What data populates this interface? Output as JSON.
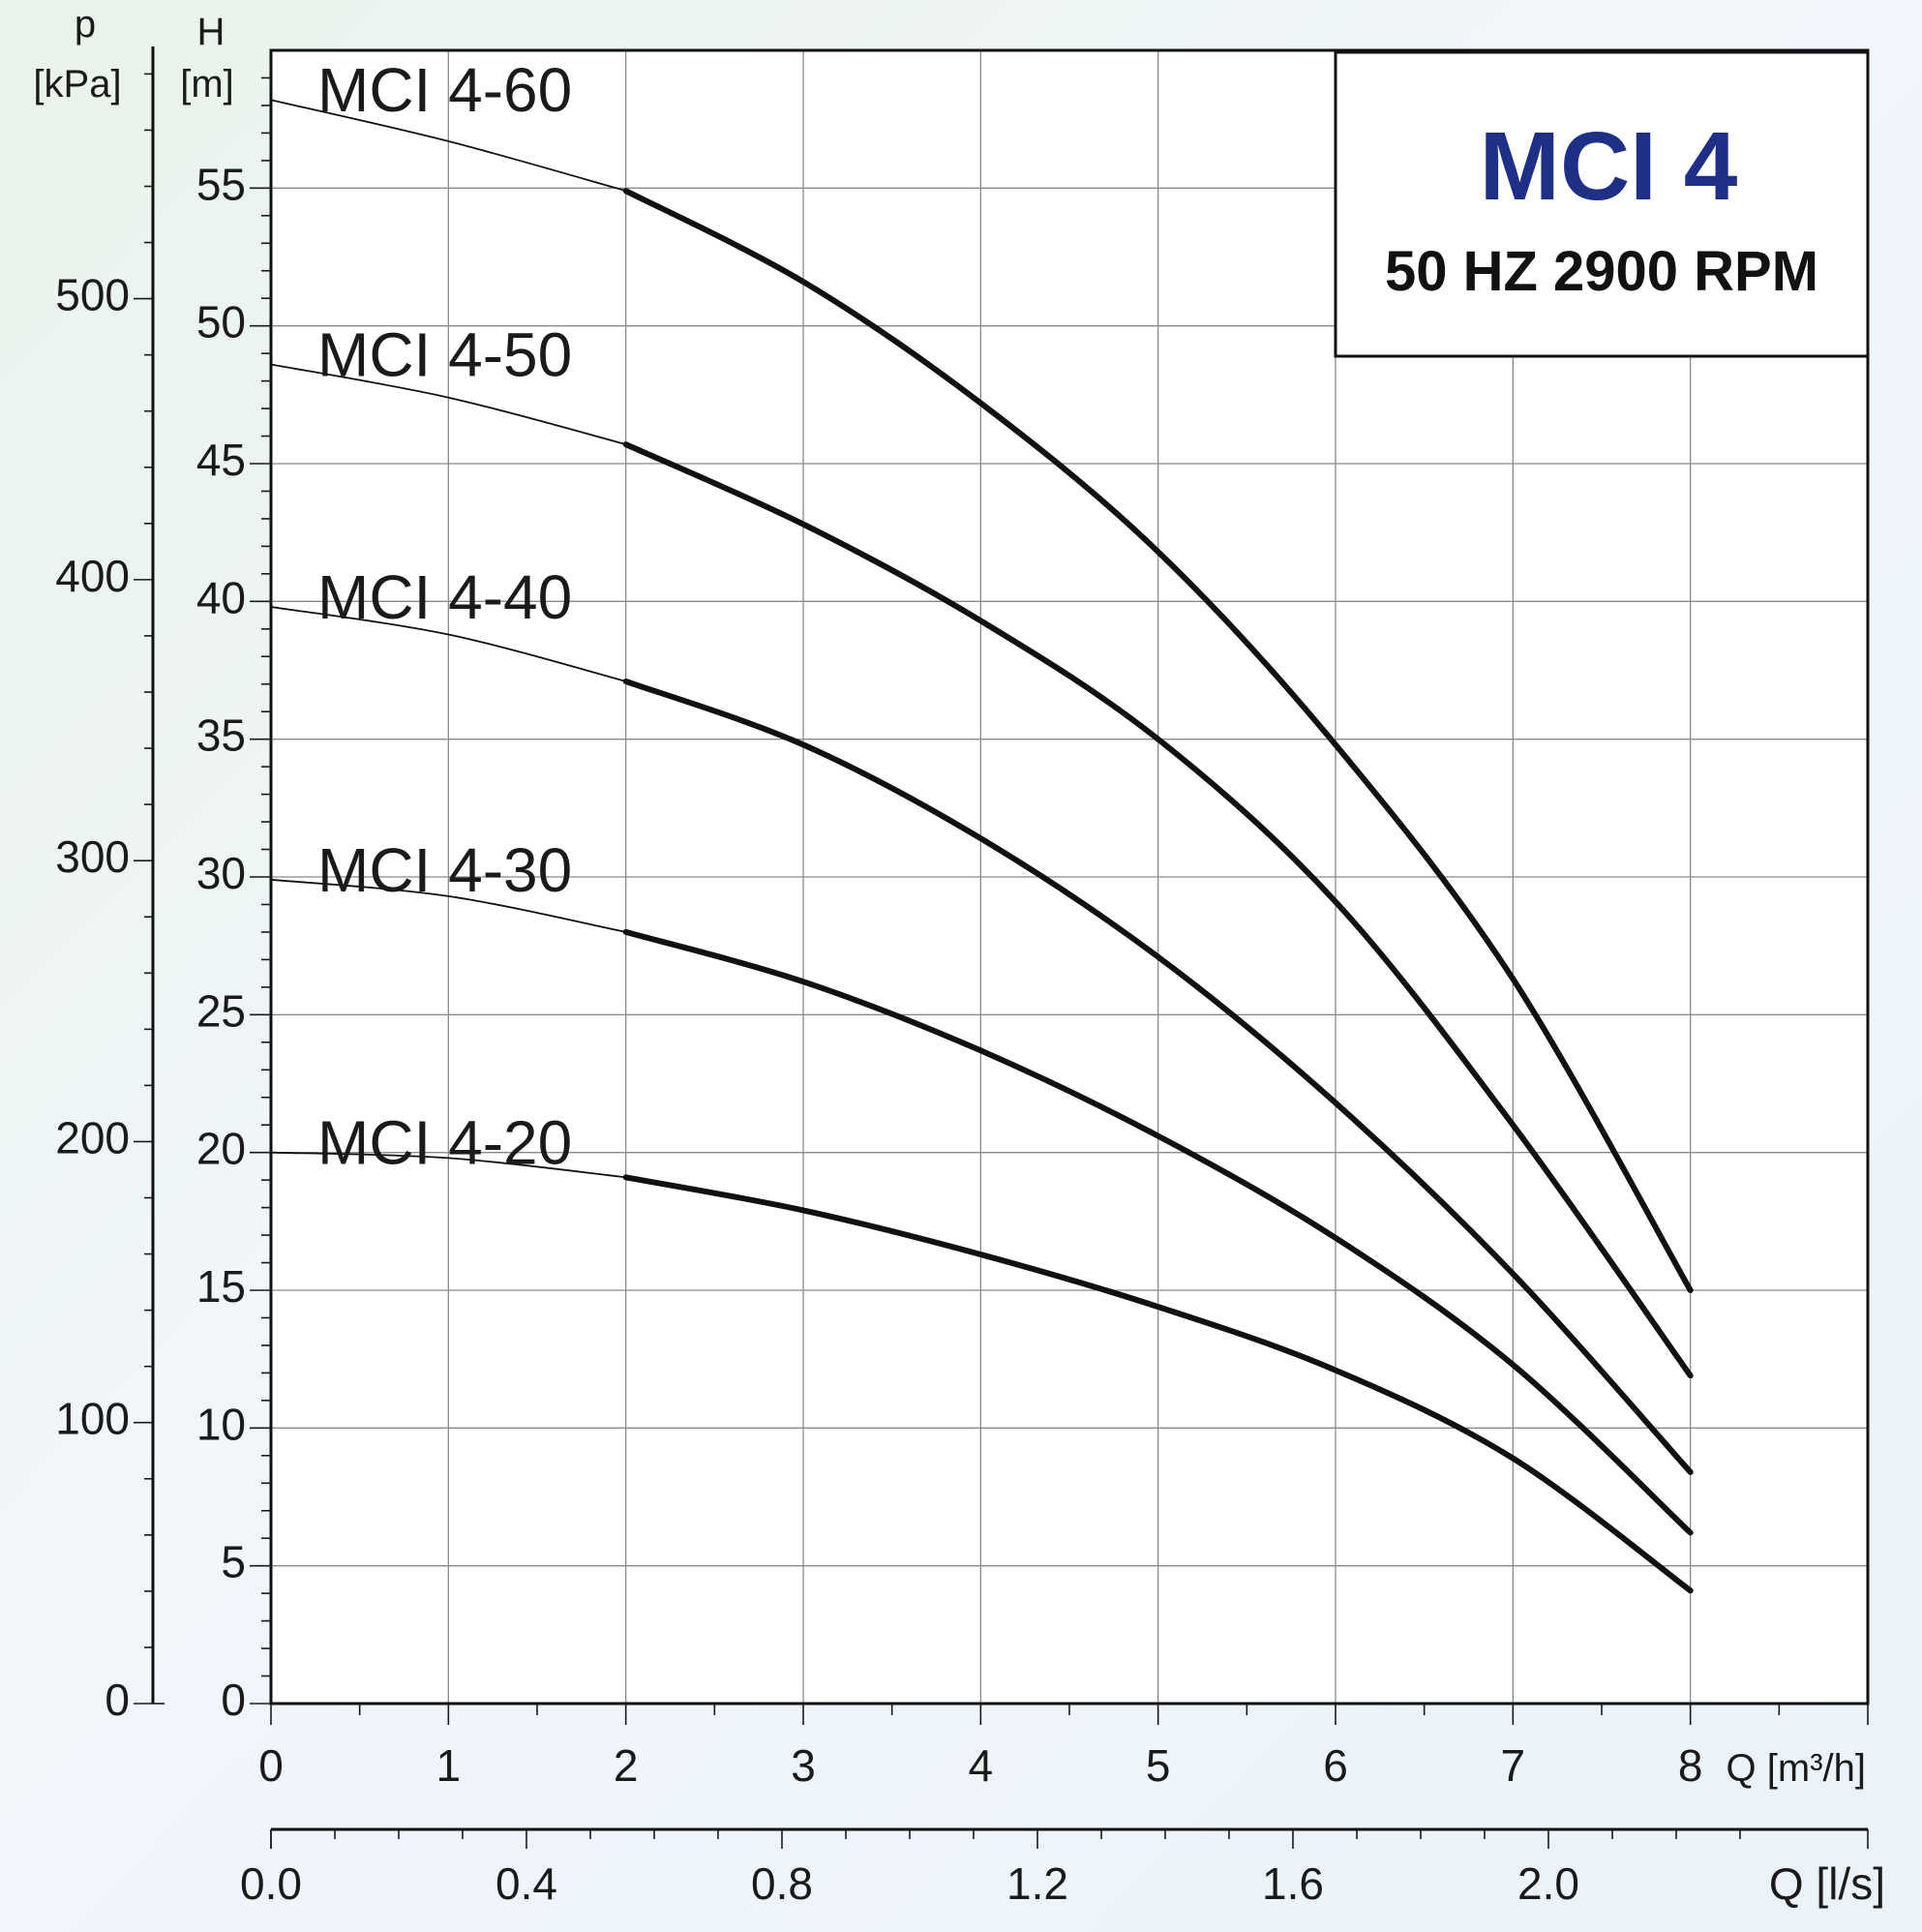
{
  "chart_data": {
    "type": "line",
    "title": "MCI 4",
    "subtitle": "50 HZ 2900 RPM",
    "title_color": "#1f2f86",
    "x": [
      0,
      1,
      2,
      3,
      4,
      5,
      6,
      7,
      8
    ],
    "series": [
      {
        "name": "MCI 4-60",
        "values": [
          58.2,
          56.7,
          54.9,
          51.6,
          47.2,
          41.8,
          34.8,
          26.3,
          15.0
        ]
      },
      {
        "name": "MCI 4-50",
        "values": [
          48.6,
          47.4,
          45.7,
          42.8,
          39.3,
          35.0,
          29.1,
          21.0,
          11.9
        ]
      },
      {
        "name": "MCI 4-40",
        "values": [
          39.8,
          38.8,
          37.1,
          34.8,
          31.4,
          27.1,
          21.8,
          15.6,
          8.4
        ]
      },
      {
        "name": "MCI 4-30",
        "values": [
          29.9,
          29.3,
          28.0,
          26.2,
          23.7,
          20.6,
          16.9,
          12.3,
          6.2
        ]
      },
      {
        "name": "MCI 4-20",
        "values": [
          20.0,
          19.8,
          19.1,
          17.9,
          16.3,
          14.4,
          12.1,
          8.9,
          4.1
        ]
      }
    ],
    "bold_from_x": 2,
    "x_axis": {
      "label": "Q [m³/h]",
      "range": [
        0,
        9
      ],
      "ticks": [
        "0",
        "1",
        "2",
        "3",
        "4",
        "5",
        "6",
        "7",
        "8"
      ]
    },
    "x2_axis": {
      "label": "Q [l/s]",
      "range": [
        0,
        2.5
      ],
      "ticks": [
        "0.0",
        "0.4",
        "0.8",
        "1.2",
        "1.6",
        "2.0"
      ]
    },
    "y_axis": {
      "label_symbol": "H",
      "label_unit": "[m]",
      "range": [
        0,
        60
      ],
      "ticks": [
        "0",
        "5",
        "10",
        "15",
        "20",
        "25",
        "30",
        "35",
        "40",
        "45",
        "50",
        "55"
      ]
    },
    "y2_axis": {
      "label_symbol": "p",
      "label_unit": "[kPa]",
      "range": [
        0,
        588.4
      ],
      "ticks": [
        "0",
        "100",
        "200",
        "300",
        "400",
        "500"
      ]
    },
    "grid": true,
    "legend": "labels-on-curves"
  }
}
